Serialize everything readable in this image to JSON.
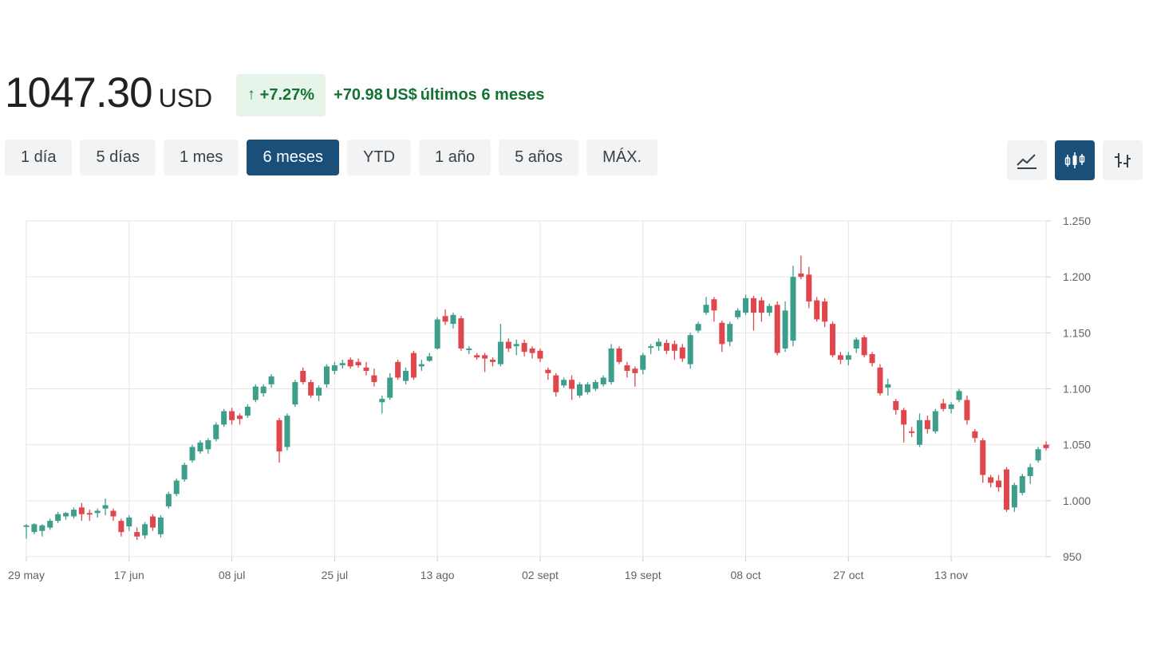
{
  "quote": {
    "price": "1047.30",
    "currency": "USD",
    "change_pct": "+7.27%",
    "change_abs": "+70.98",
    "change_abs_unit": "US$",
    "change_period": "últimos 6 meses"
  },
  "ranges": [
    "1 día",
    "5 días",
    "1 mes",
    "6 meses",
    "YTD",
    "1 año",
    "5 años",
    "MÁX."
  ],
  "active_range": "6 meses",
  "chart_types": [
    {
      "name": "line-chart-icon",
      "active": false
    },
    {
      "name": "candlestick-chart-icon",
      "active": true
    },
    {
      "name": "ohlc-chart-icon",
      "active": false
    }
  ],
  "colors": {
    "up": "#3d9e8c",
    "down": "#e0474c",
    "accent": "#1a4f7a",
    "positive_text": "#137333"
  },
  "chart_data": {
    "type": "candlestick",
    "ylim": [
      950,
      1250
    ],
    "yticks": [
      {
        "value": 950,
        "label": "950"
      },
      {
        "value": 1000,
        "label": "1.000"
      },
      {
        "value": 1050,
        "label": "1.050"
      },
      {
        "value": 1100,
        "label": "1.100"
      },
      {
        "value": 1150,
        "label": "1.150"
      },
      {
        "value": 1200,
        "label": "1.200"
      },
      {
        "value": 1250,
        "label": "1.250"
      }
    ],
    "xticks": [
      {
        "index": 0,
        "label": "29 may"
      },
      {
        "index": 13,
        "label": "17 jun"
      },
      {
        "index": 26,
        "label": "08 jul"
      },
      {
        "index": 39,
        "label": "25 jul"
      },
      {
        "index": 52,
        "label": "13 ago"
      },
      {
        "index": 65,
        "label": "02 sept"
      },
      {
        "index": 78,
        "label": "19 sept"
      },
      {
        "index": 91,
        "label": "08 oct"
      },
      {
        "index": 104,
        "label": "27 oct"
      },
      {
        "index": 117,
        "label": "13 nov"
      }
    ],
    "candles": [
      [
        977,
        978,
        966,
        979
      ],
      [
        972,
        979,
        970,
        980
      ],
      [
        973,
        978,
        968,
        979
      ],
      [
        976,
        982,
        974,
        984
      ],
      [
        982,
        988,
        980,
        990
      ],
      [
        986,
        989,
        983,
        990
      ],
      [
        986,
        992,
        984,
        994
      ],
      [
        994,
        988,
        982,
        998
      ],
      [
        989,
        988,
        982,
        992
      ],
      [
        989,
        991,
        985,
        993
      ],
      [
        993,
        996,
        987,
        1002
      ],
      [
        991,
        986,
        982,
        993
      ],
      [
        982,
        972,
        968,
        984
      ],
      [
        977,
        985,
        973,
        987
      ],
      [
        972,
        968,
        965,
        976
      ],
      [
        969,
        979,
        966,
        981
      ],
      [
        986,
        976,
        973,
        988
      ],
      [
        970,
        985,
        967,
        987
      ],
      [
        995,
        1006,
        993,
        1008
      ],
      [
        1006,
        1018,
        1004,
        1020
      ],
      [
        1019,
        1032,
        1017,
        1034
      ],
      [
        1036,
        1048,
        1034,
        1050
      ],
      [
        1044,
        1052,
        1042,
        1054
      ],
      [
        1046,
        1054,
        1042,
        1056
      ],
      [
        1055,
        1068,
        1053,
        1070
      ],
      [
        1068,
        1080,
        1066,
        1082
      ],
      [
        1080,
        1072,
        1068,
        1083
      ],
      [
        1076,
        1073,
        1068,
        1078
      ],
      [
        1076,
        1084,
        1074,
        1086
      ],
      [
        1090,
        1102,
        1088,
        1104
      ],
      [
        1096,
        1102,
        1093,
        1104
      ],
      [
        1104,
        1111,
        1101,
        1113
      ],
      [
        1072,
        1044,
        1034,
        1074
      ],
      [
        1048,
        1076,
        1045,
        1078
      ],
      [
        1086,
        1106,
        1084,
        1108
      ],
      [
        1116,
        1106,
        1104,
        1119
      ],
      [
        1106,
        1094,
        1092,
        1108
      ],
      [
        1094,
        1101,
        1089,
        1103
      ],
      [
        1104,
        1120,
        1101,
        1122
      ],
      [
        1116,
        1121,
        1113,
        1124
      ],
      [
        1121,
        1123,
        1118,
        1126
      ],
      [
        1126,
        1120,
        1118,
        1128
      ],
      [
        1124,
        1121,
        1119,
        1127
      ],
      [
        1119,
        1116,
        1112,
        1124
      ],
      [
        1112,
        1106,
        1102,
        1118
      ],
      [
        1088,
        1091,
        1078,
        1094
      ],
      [
        1092,
        1110,
        1090,
        1114
      ],
      [
        1124,
        1110,
        1108,
        1126
      ],
      [
        1107,
        1116,
        1104,
        1119
      ],
      [
        1132,
        1110,
        1108,
        1134
      ],
      [
        1120,
        1122,
        1116,
        1126
      ],
      [
        1125,
        1129,
        1124,
        1132
      ],
      [
        1136,
        1162,
        1135,
        1164
      ],
      [
        1165,
        1160,
        1157,
        1171
      ],
      [
        1158,
        1166,
        1154,
        1168
      ],
      [
        1163,
        1136,
        1134,
        1165
      ],
      [
        1135,
        1136,
        1131,
        1138
      ],
      [
        1130,
        1128,
        1126,
        1132
      ],
      [
        1130,
        1127,
        1115,
        1132
      ],
      [
        1126,
        1124,
        1120,
        1128
      ],
      [
        1122,
        1142,
        1120,
        1158
      ],
      [
        1142,
        1136,
        1133,
        1145
      ],
      [
        1138,
        1140,
        1130,
        1144
      ],
      [
        1141,
        1133,
        1129,
        1144
      ],
      [
        1136,
        1132,
        1127,
        1138
      ],
      [
        1134,
        1127,
        1124,
        1136
      ],
      [
        1117,
        1114,
        1108,
        1119
      ],
      [
        1112,
        1097,
        1093,
        1114
      ],
      [
        1103,
        1108,
        1101,
        1110
      ],
      [
        1108,
        1100,
        1090,
        1112
      ],
      [
        1094,
        1104,
        1092,
        1106
      ],
      [
        1097,
        1104,
        1095,
        1106
      ],
      [
        1100,
        1106,
        1098,
        1108
      ],
      [
        1104,
        1110,
        1102,
        1112
      ],
      [
        1106,
        1136,
        1104,
        1140
      ],
      [
        1136,
        1124,
        1122,
        1138
      ],
      [
        1121,
        1116,
        1110,
        1124
      ],
      [
        1118,
        1114,
        1102,
        1120
      ],
      [
        1117,
        1130,
        1113,
        1132
      ],
      [
        1138,
        1138,
        1131,
        1140
      ],
      [
        1138,
        1142,
        1134,
        1145
      ],
      [
        1141,
        1134,
        1131,
        1144
      ],
      [
        1140,
        1134,
        1126,
        1143
      ],
      [
        1137,
        1127,
        1124,
        1140
      ],
      [
        1122,
        1148,
        1118,
        1150
      ],
      [
        1152,
        1158,
        1150,
        1160
      ],
      [
        1168,
        1175,
        1166,
        1182
      ],
      [
        1180,
        1170,
        1160,
        1182
      ],
      [
        1159,
        1140,
        1133,
        1161
      ],
      [
        1142,
        1158,
        1138,
        1160
      ],
      [
        1164,
        1170,
        1162,
        1172
      ],
      [
        1168,
        1181,
        1166,
        1184
      ],
      [
        1181,
        1168,
        1152,
        1183
      ],
      [
        1179,
        1168,
        1160,
        1182
      ],
      [
        1168,
        1174,
        1165,
        1176
      ],
      [
        1175,
        1132,
        1130,
        1178
      ],
      [
        1136,
        1170,
        1133,
        1178
      ],
      [
        1143,
        1200,
        1138,
        1210
      ],
      [
        1203,
        1200,
        1198,
        1219
      ],
      [
        1202,
        1178,
        1172,
        1209
      ],
      [
        1179,
        1162,
        1160,
        1182
      ],
      [
        1178,
        1160,
        1155,
        1181
      ],
      [
        1158,
        1130,
        1128,
        1160
      ],
      [
        1130,
        1126,
        1122,
        1133
      ],
      [
        1126,
        1130,
        1121,
        1133
      ],
      [
        1136,
        1144,
        1132,
        1146
      ],
      [
        1146,
        1130,
        1128,
        1148
      ],
      [
        1131,
        1123,
        1120,
        1133
      ],
      [
        1119,
        1096,
        1094,
        1122
      ],
      [
        1101,
        1104,
        1094,
        1109
      ],
      [
        1089,
        1081,
        1077,
        1091
      ],
      [
        1081,
        1068,
        1052,
        1083
      ],
      [
        1062,
        1061,
        1057,
        1066
      ],
      [
        1050,
        1072,
        1048,
        1078
      ],
      [
        1072,
        1064,
        1060,
        1076
      ],
      [
        1062,
        1080,
        1060,
        1082
      ],
      [
        1087,
        1082,
        1080,
        1091
      ],
      [
        1082,
        1086,
        1078,
        1088
      ],
      [
        1090,
        1098,
        1088,
        1100
      ],
      [
        1090,
        1072,
        1068,
        1094
      ],
      [
        1062,
        1056,
        1052,
        1064
      ],
      [
        1054,
        1023,
        1016,
        1056
      ],
      [
        1021,
        1016,
        1012,
        1023
      ],
      [
        1018,
        1012,
        1008,
        1023
      ],
      [
        1028,
        992,
        990,
        1030
      ],
      [
        994,
        1014,
        990,
        1016
      ],
      [
        1007,
        1022,
        1005,
        1024
      ],
      [
        1022,
        1030,
        1015,
        1033
      ],
      [
        1036,
        1046,
        1034,
        1048
      ],
      [
        1050,
        1047,
        1045,
        1053
      ]
    ]
  }
}
